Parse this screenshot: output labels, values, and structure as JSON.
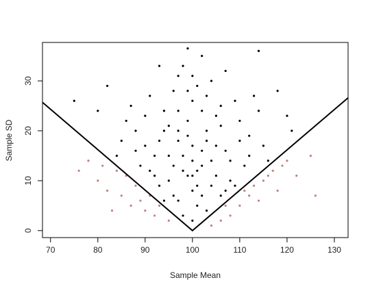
{
  "chart_data": {
    "type": "scatter",
    "xlabel": "Sample Mean",
    "ylabel": "Sample SD",
    "xlim": [
      68.3,
      132.9
    ],
    "ylim": [
      -1.4,
      37.7
    ],
    "xticks": [
      70,
      80,
      90,
      100,
      110,
      120,
      130
    ],
    "yticks": [
      0,
      10,
      20,
      30
    ],
    "series": [
      {
        "color": "#000000",
        "x": [
          100,
          98,
          102,
          95,
          105,
          97,
          103,
          92,
          108,
          100,
          99,
          101,
          94,
          106,
          90,
          110,
          96,
          104,
          88,
          112,
          93,
          107,
          100,
          98,
          102,
          86,
          114,
          91,
          109,
          97,
          103,
          95,
          105,
          99,
          101,
          89,
          111,
          94,
          106,
          92,
          108,
          100,
          97,
          104,
          96,
          102,
          85,
          115,
          87,
          113,
          100,
          99,
          101,
          98,
          102,
          93,
          107,
          90,
          110,
          95,
          105,
          91,
          109,
          96,
          104,
          88,
          112,
          94,
          106,
          97,
          103,
          100,
          82,
          118,
          80,
          120,
          114,
          99,
          75,
          121,
          84,
          116,
          93,
          107,
          100,
          98,
          102,
          97,
          103,
          99,
          101
        ],
        "values": [
          14,
          12,
          16,
          10,
          11,
          18,
          20,
          15,
          14,
          8,
          22,
          5,
          24,
          25,
          17,
          18,
          28,
          30,
          20,
          19,
          9,
          8,
          2,
          33,
          35,
          22,
          24,
          27,
          26,
          6,
          4,
          15,
          17,
          19,
          12,
          13,
          13,
          20,
          21,
          11,
          10,
          26,
          31,
          9,
          13,
          24,
          18,
          17,
          25,
          27,
          17,
          11,
          9,
          3,
          7,
          18,
          16,
          23,
          22,
          21,
          23,
          12,
          9,
          7,
          14,
          16,
          15,
          6,
          7,
          24,
          27,
          31,
          29,
          28,
          24,
          23,
          36,
          36.5,
          26,
          20,
          15,
          14,
          33,
          32,
          11,
          15,
          13,
          20,
          18,
          28,
          29
        ]
      },
      {
        "color": "#c08080",
        "x": [
          80,
          82,
          85,
          87,
          88,
          90,
          92,
          93,
          95,
          84,
          78,
          76,
          86,
          89,
          91,
          108,
          110,
          112,
          113,
          115,
          117,
          118,
          120,
          122,
          125,
          111,
          114,
          116,
          119,
          106,
          107,
          104,
          126,
          83,
          81
        ],
        "values": [
          10,
          8,
          7,
          5,
          9,
          4,
          3,
          5,
          2,
          12,
          14,
          12,
          11,
          6,
          7,
          3,
          5,
          7,
          9,
          10,
          12,
          8,
          14,
          11,
          15,
          8,
          6,
          11,
          13,
          2,
          5,
          1,
          7,
          4,
          13
        ]
      }
    ],
    "lines": [
      {
        "color": "#000000",
        "x": [
          68.3,
          100,
          132.9
        ],
        "values": [
          25.7,
          0,
          26.6
        ]
      }
    ]
  }
}
